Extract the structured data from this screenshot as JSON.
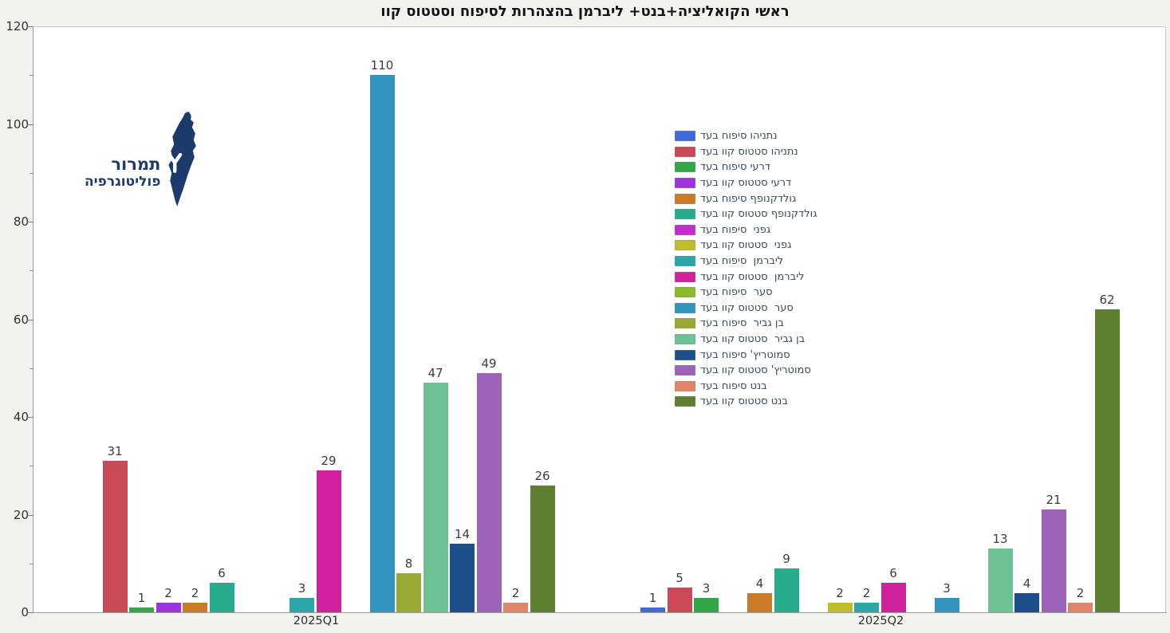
{
  "title": "ראשי הקואליציה+בנט+ ליברמן בהצהרות לסיפוח וסטטוס קוו",
  "logo": {
    "line1": "תמרור",
    "line2": "פוליטוגרפיה",
    "color": "#1c3a6b",
    "map_icon": "israel-map",
    "fork_icon": "road-fork"
  },
  "colors": {
    "page_background": "#f2f2f0",
    "plot_background": "#ffffff",
    "axis": "#9a9a9a",
    "value_label": "#3c3c3c",
    "legend_text": "#3c4a57"
  },
  "chart_data": {
    "type": "bar",
    "title": "ראשי הקואליציה+בנט+ ליברמן בהצהרות לסיפוח וסטטוס קוו",
    "xlabel": "",
    "ylabel": "",
    "ylim": [
      0,
      120
    ],
    "y_major_ticks": [
      0,
      20,
      40,
      60,
      80,
      100,
      120
    ],
    "y_minor_step": 10,
    "grid": false,
    "legend_position": "inside-middle-right",
    "categories": [
      "2025Q1",
      "2025Q2"
    ],
    "series": [
      {
        "name": "נתניהו סיפוח בעד",
        "color": "#3f6ade",
        "values": [
          0,
          1
        ]
      },
      {
        "name": "נתניהו סטטוס קוו בעד",
        "color": "#cc4a57",
        "values": [
          31,
          5
        ]
      },
      {
        "name": "דרעי סיפוח בעד",
        "color": "#31a748",
        "values": [
          1,
          3
        ]
      },
      {
        "name": "דרעי סטטוס קוו בעד",
        "color": "#9c33dd",
        "values": [
          2,
          0
        ]
      },
      {
        "name": "גולדקנופף סיפוח בעד",
        "color": "#cb7a27",
        "values": [
          2,
          4
        ]
      },
      {
        "name": "גולדקנופף סטטוס קוו בעד",
        "color": "#27ab8d",
        "values": [
          6,
          9
        ]
      },
      {
        "name": "גפני  סיפוח בעד",
        "color": "#c02ecb",
        "values": [
          0,
          0
        ]
      },
      {
        "name": "גפני  סטטוס קוו בעד",
        "color": "#bfbd2b",
        "values": [
          0,
          2
        ]
      },
      {
        "name": "ליברמן  סיפוח בעד",
        "color": "#2ba7ab",
        "values": [
          3,
          2
        ]
      },
      {
        "name": "ליברמן  סטטוס קוו בעד",
        "color": "#d2219c",
        "values": [
          29,
          6
        ]
      },
      {
        "name": "סער  סיפוח בעד",
        "color": "#8db92f",
        "values": [
          0,
          0
        ]
      },
      {
        "name": "סער  סטטוס קוו בעד",
        "color": "#3293be",
        "values": [
          110,
          3
        ]
      },
      {
        "name": "בן גביר  סיפוח בעד",
        "color": "#9aa836",
        "values": [
          8,
          0
        ]
      },
      {
        "name": "בן גביר  סטטוס קוו בעד",
        "color": "#6cc294",
        "values": [
          47,
          13
        ]
      },
      {
        "name": "סמוטריץ' סיפוח בעד",
        "color": "#1d4f8c",
        "values": [
          14,
          4
        ]
      },
      {
        "name": "סמוטריץ' סטטוס קוו בעד",
        "color": "#9c63b8",
        "values": [
          49,
          21
        ]
      },
      {
        "name": "בנט סיפוח בעד",
        "color": "#e28468",
        "values": [
          2,
          2
        ]
      },
      {
        "name": "בנט סטטוס קוו בעד",
        "color": "#5e8030",
        "values": [
          26,
          62
        ]
      }
    ]
  }
}
